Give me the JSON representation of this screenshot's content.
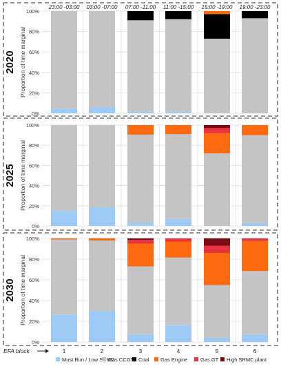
{
  "chart_data": {
    "type": "bar",
    "stacked": true,
    "orientation": "vertical",
    "layout": "three panels stacked vertically",
    "categories": [
      "1",
      "2",
      "3",
      "4",
      "5",
      "6"
    ],
    "block_times": [
      "23:00 -03:00",
      "03:00 -07:00",
      "07:00 -11:00",
      "11:00 -15:00",
      "15:00 -19:00",
      "19:00 -23:00"
    ],
    "xlabel": "EFA block",
    "ylabel": "Proportion of time marginal",
    "yticks": [
      "0%",
      "20%",
      "40%",
      "60%",
      "80%",
      "100%"
    ],
    "ylim": [
      0,
      100
    ],
    "grid": true,
    "legend_position": "bottom",
    "series_meta": [
      {
        "name": "Must Run / Low SRMC",
        "color": "#9ecbf5"
      },
      {
        "name": "Gas CCGT",
        "color": "#c4c4c4"
      },
      {
        "name": "Coal",
        "color": "#000000"
      },
      {
        "name": "Gas Engine",
        "color": "#ff6a10"
      },
      {
        "name": "Gas GT",
        "color": "#e8323e"
      },
      {
        "name": "High SRMC plant",
        "color": "#7b0a14"
      }
    ],
    "panels": [
      {
        "title": "2020",
        "series": [
          {
            "name": "Must Run / Low SRMC",
            "values": [
              4.5,
              6,
              1.5,
              1.5,
              0,
              0
            ]
          },
          {
            "name": "Gas CCGT",
            "values": [
              95.5,
              94,
              89.5,
              90.5,
              73,
              93
            ]
          },
          {
            "name": "Coal",
            "values": [
              0,
              0,
              9,
              8,
              24,
              7
            ]
          },
          {
            "name": "Gas Engine",
            "values": [
              0,
              0,
              0,
              0,
              3,
              0
            ]
          },
          {
            "name": "Gas GT",
            "values": [
              0,
              0,
              0,
              0,
              0,
              0
            ]
          },
          {
            "name": "High SRMC plant",
            "values": [
              0,
              0,
              0,
              0,
              0,
              0
            ]
          }
        ]
      },
      {
        "title": "2025",
        "series": [
          {
            "name": "Must Run / Low SRMC",
            "values": [
              15,
              18.5,
              3.5,
              7,
              0,
              3
            ]
          },
          {
            "name": "Gas CCGT",
            "values": [
              85,
              81.5,
              87,
              84,
              72,
              87
            ]
          },
          {
            "name": "Coal",
            "values": [
              0,
              0,
              0,
              0,
              0,
              0
            ]
          },
          {
            "name": "Gas Engine",
            "values": [
              0,
              0,
              9.5,
              9,
              20,
              10
            ]
          },
          {
            "name": "Gas GT",
            "values": [
              0,
              0,
              0,
              0,
              5,
              0
            ]
          },
          {
            "name": "High SRMC plant",
            "values": [
              0,
              0,
              0,
              0,
              3,
              0
            ]
          }
        ]
      },
      {
        "title": "2030",
        "series": [
          {
            "name": "Must Run / Low SRMC",
            "values": [
              26.5,
              30,
              7.5,
              16.5,
              4,
              7.5
            ]
          },
          {
            "name": "Gas CCGT",
            "values": [
              72.5,
              68,
              65.5,
              65,
              51,
              61
            ]
          },
          {
            "name": "Coal",
            "values": [
              0,
              0,
              0,
              0,
              0,
              0
            ]
          },
          {
            "name": "Gas Engine",
            "values": [
              1,
              2,
              22,
              15.5,
              31,
              29
            ]
          },
          {
            "name": "Gas GT",
            "values": [
              0,
              0,
              3.5,
              3,
              7,
              2.5
            ]
          },
          {
            "name": "High SRMC plant",
            "values": [
              0,
              0,
              1.5,
              0,
              7,
              0
            ]
          }
        ]
      }
    ]
  }
}
